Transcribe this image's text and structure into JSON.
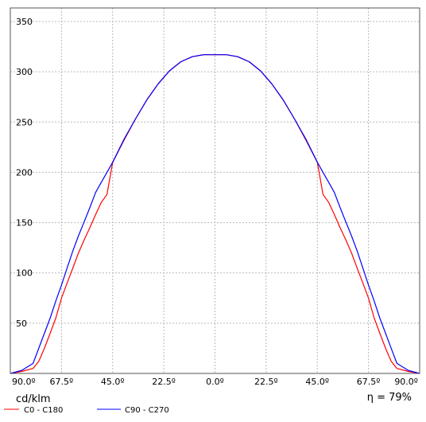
{
  "chart_data": {
    "type": "line",
    "ylim": [
      0,
      350
    ],
    "y_ticks": [
      50,
      100,
      150,
      200,
      250,
      300,
      350
    ],
    "x_range": [
      -90,
      90
    ],
    "x_ticks": [
      {
        "value": -90,
        "label": "90.0º"
      },
      {
        "value": -67.5,
        "label": "67.5º"
      },
      {
        "value": -45,
        "label": "45.0º"
      },
      {
        "value": -22.5,
        "label": "22.5º"
      },
      {
        "value": 0,
        "label": "0.0º"
      },
      {
        "value": 22.5,
        "label": "22.5º"
      },
      {
        "value": 45,
        "label": "45.0º"
      },
      {
        "value": 67.5,
        "label": "67.5º"
      },
      {
        "value": 90,
        "label": "90.0º"
      }
    ],
    "grid": true,
    "unit_label": "cd/klm",
    "efficiency_label": "η = 79%",
    "series": [
      {
        "name": "C0 - C180",
        "color": "#ff0000",
        "x": [
          -90,
          -85,
          -80,
          -77.5,
          -75,
          -72.5,
          -70,
          -67.5,
          -65,
          -62.5,
          -60,
          -57.5,
          -55,
          -52.5,
          -50,
          -47.5,
          -45,
          -40,
          -35,
          -30,
          -25,
          -20,
          -15,
          -10,
          -5,
          0,
          5,
          10,
          15,
          20,
          25,
          30,
          35,
          40,
          45,
          47.5,
          50,
          52.5,
          55,
          57.5,
          60,
          62.5,
          65,
          67.5,
          70,
          72.5,
          75,
          77.5,
          80,
          85,
          90
        ],
        "values": [
          0,
          2,
          5,
          12,
          25,
          40,
          55,
          75,
          90,
          105,
          120,
          133,
          145,
          158,
          170,
          178,
          210,
          232,
          253,
          272,
          288,
          301,
          310,
          315,
          317,
          317,
          317,
          315,
          310,
          301,
          288,
          272,
          253,
          232,
          210,
          178,
          170,
          158,
          145,
          133,
          120,
          105,
          90,
          75,
          55,
          40,
          25,
          12,
          5,
          2,
          0
        ]
      },
      {
        "name": "C90 - C270",
        "color": "#0000ff",
        "x": [
          -90,
          -85,
          -80,
          -77.5,
          -75,
          -72.5,
          -70,
          -67.5,
          -65,
          -62.5,
          -60,
          -57.5,
          -55,
          -52.5,
          -50,
          -47.5,
          -45,
          -40,
          -35,
          -30,
          -25,
          -20,
          -15,
          -10,
          -5,
          0,
          5,
          10,
          15,
          20,
          25,
          30,
          35,
          40,
          45,
          47.5,
          50,
          52.5,
          55,
          57.5,
          60,
          62.5,
          65,
          67.5,
          70,
          72.5,
          75,
          77.5,
          80,
          85,
          90
        ],
        "values": [
          0,
          3,
          10,
          25,
          40,
          55,
          72,
          88,
          105,
          122,
          137,
          151,
          165,
          180,
          190,
          200,
          210,
          233,
          253,
          272,
          288,
          301,
          310,
          315,
          317,
          317,
          317,
          315,
          310,
          301,
          288,
          272,
          253,
          233,
          210,
          200,
          190,
          180,
          165,
          151,
          137,
          122,
          105,
          88,
          72,
          55,
          40,
          25,
          10,
          3,
          0
        ]
      }
    ]
  }
}
